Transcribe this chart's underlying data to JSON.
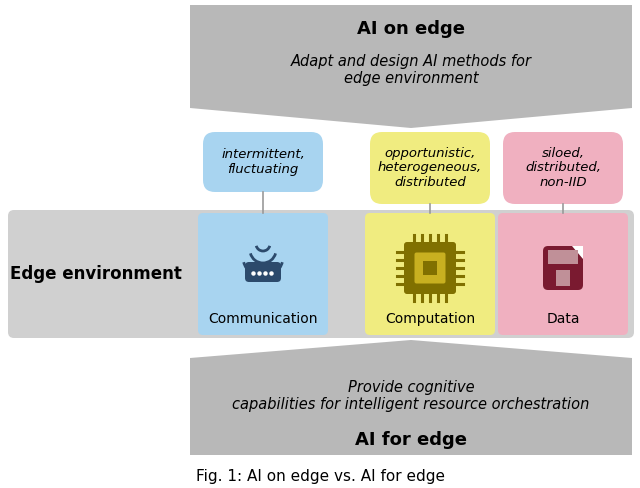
{
  "bg_color": "#ffffff",
  "top_title": "AI on edge",
  "top_subtitle": "Adapt and design AI methods for\nedge environment",
  "bottom_title": "AI for edge",
  "bottom_subtitle": "Provide cognitive\ncapabilities for intelligent resource orchestration",
  "edge_env_label": "Edge environment",
  "comm_label": "Communication",
  "comp_label": "Computation",
  "data_label": "Data",
  "comm_bubble": "intermittent,\nfluctuating",
  "comp_bubble": "opportunistic,\nheterogeneous,\ndistributed",
  "data_bubble": "siloed,\ndistributed,\nnon-IID",
  "fig_caption": "Fig. 1: AI on edge vs. AI for edge",
  "banner_color": "#b8b8b8",
  "edge_env_color": "#d0d0d0",
  "comm_color": "#a8d4f0",
  "comp_color": "#f0ec80",
  "data_color": "#f0b0c0",
  "comm_dark": "#2c4a6c",
  "comp_dark": "#807000",
  "data_dark": "#7a1a30"
}
